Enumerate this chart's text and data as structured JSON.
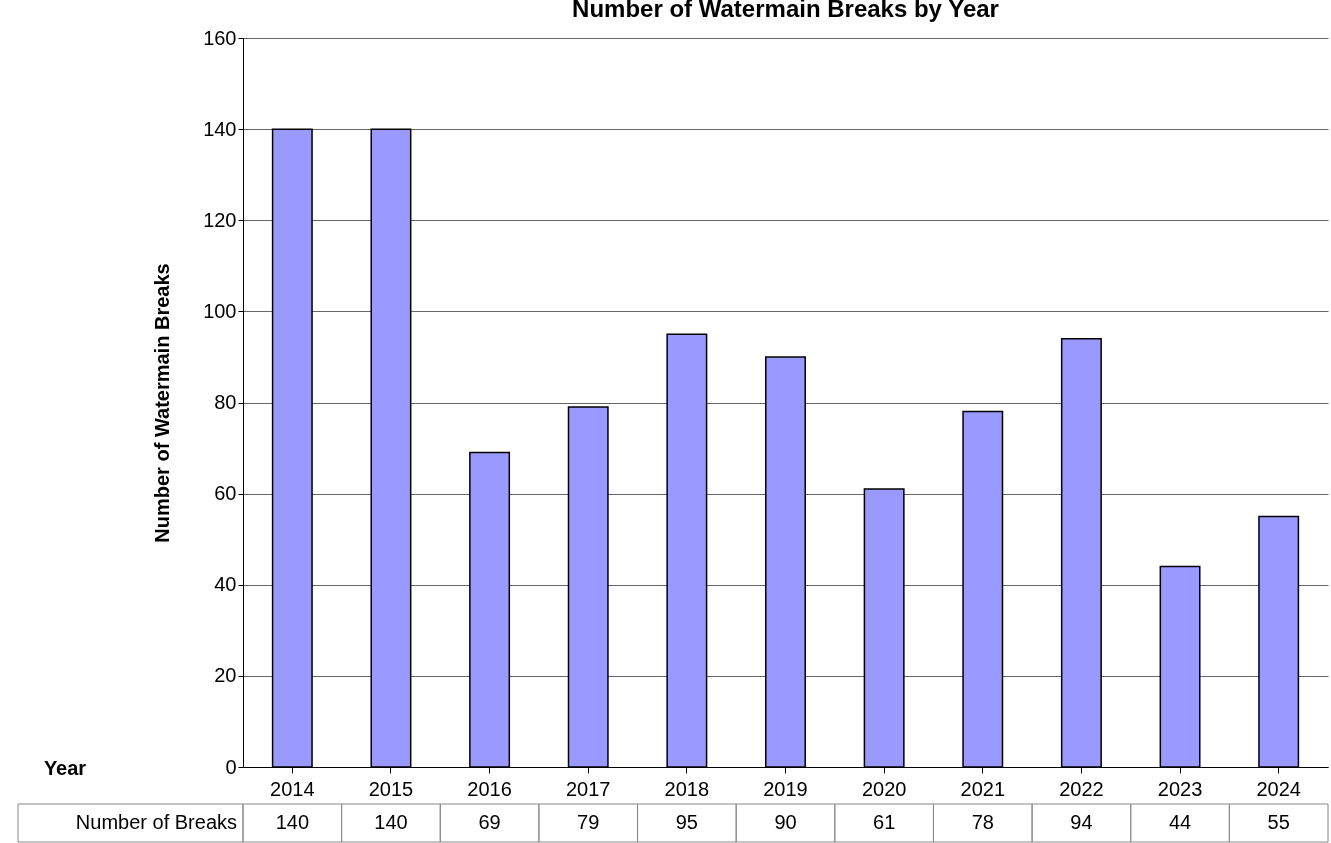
{
  "chart_data": {
    "type": "bar",
    "title": "Number of Watermain Breaks by Year",
    "annotations": [
      "Year"
    ],
    "ylabel": "Number of Watermain Breaks",
    "categories": [
      "2014",
      "2015",
      "2016",
      "2017",
      "2018",
      "2019",
      "2020",
      "2021",
      "2022",
      "2023",
      "2024"
    ],
    "series": [
      {
        "name": "Number of Breaks",
        "color": "#9999ff",
        "values": [
          140,
          140,
          69,
          79,
          95,
          90,
          61,
          78,
          94,
          44,
          55
        ]
      }
    ],
    "ylim": [
      0,
      160
    ],
    "yticks": [
      0,
      20,
      40,
      60,
      80,
      100,
      120,
      140,
      160
    ],
    "grid": "y",
    "data_labels": true
  }
}
